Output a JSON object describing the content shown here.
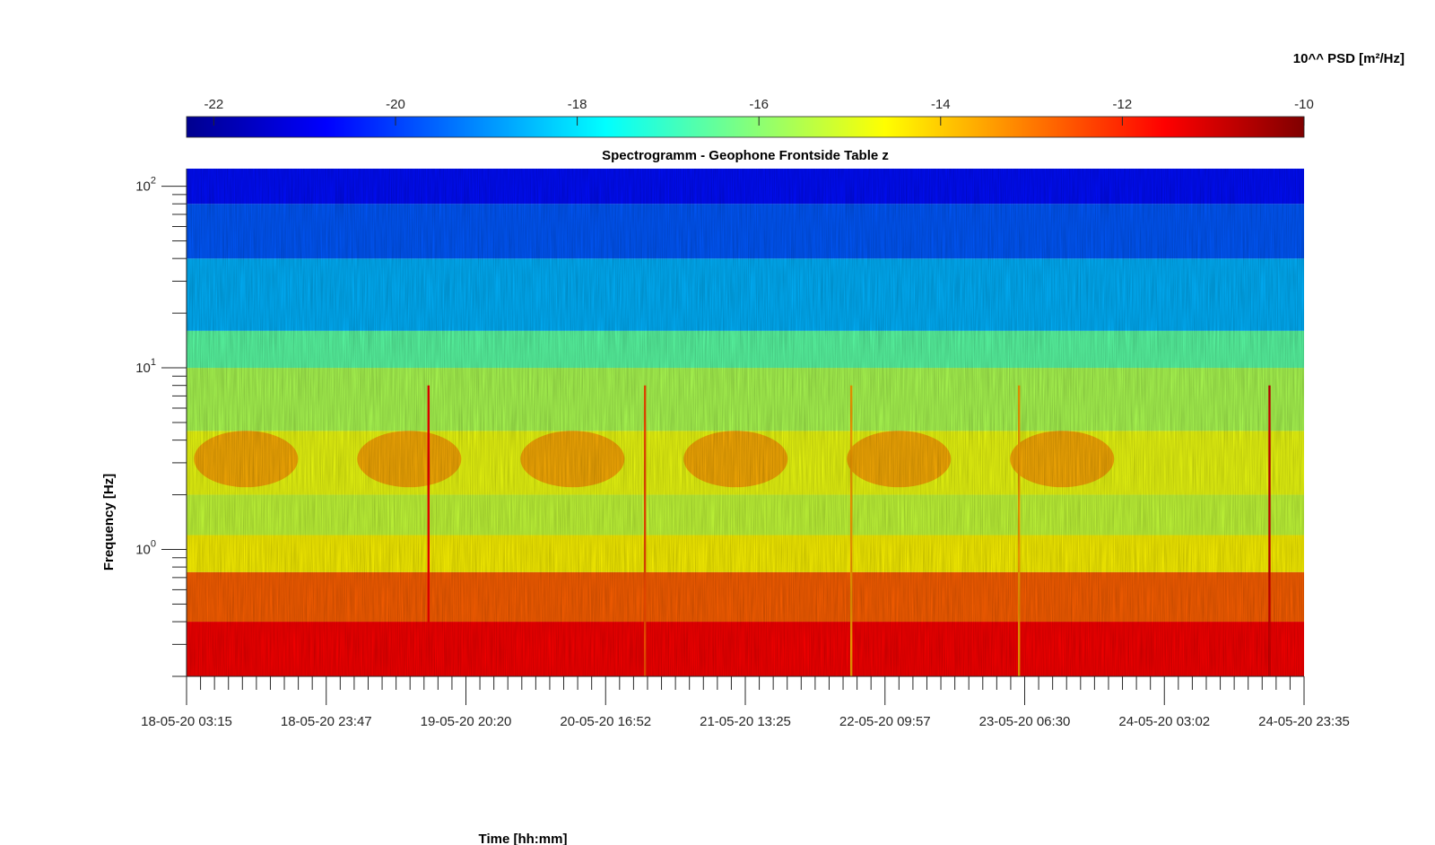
{
  "chart_data": {
    "type": "heatmap",
    "title": "Spectrogramm - Geophone Frontside Table z",
    "xlabel": "Time [hh:mm]",
    "ylabel": "Frequency [Hz]",
    "y_scale": "log",
    "ylim": [
      0.2,
      125
    ],
    "colormap": "jet",
    "colorbar": {
      "label": "10^^ PSD [m²/Hz]",
      "range": [
        -22.3,
        -10
      ],
      "ticks": [
        "-22",
        "-20",
        "-18",
        "-16",
        "-14",
        "-12",
        "-10"
      ],
      "tick_values": [
        -22,
        -20,
        -18,
        -16,
        -14,
        -12,
        -10
      ],
      "placement": "top"
    },
    "x_tick_labels": [
      "18-05-20 03:15",
      "18-05-20 23:47",
      "19-05-20 20:20",
      "20-05-20 16:52",
      "21-05-20 13:25",
      "22-05-20 09:57",
      "23-05-20 06:30",
      "24-05-20 03:02",
      "24-05-20 23:35"
    ],
    "x_range": [
      "18-05-20 03:15",
      "24-05-20 23:35"
    ],
    "y_ticks": [
      {
        "value": 1,
        "base": "10",
        "exp": "0"
      },
      {
        "value": 10,
        "base": "10",
        "exp": "1"
      },
      {
        "value": 100,
        "base": "10",
        "exp": "2"
      }
    ],
    "bands": [
      {
        "f_low": 0.2,
        "f_high": 0.4,
        "log10_psd": -11.5
      },
      {
        "f_low": 0.4,
        "f_high": 0.75,
        "log10_psd": -12.7
      },
      {
        "f_low": 0.75,
        "f_high": 1.2,
        "log10_psd": -14.5
      },
      {
        "f_low": 1.2,
        "f_high": 2,
        "log10_psd": -15.3
      },
      {
        "f_low": 2,
        "f_high": 4.5,
        "log10_psd": -14.8
      },
      {
        "f_low": 4.5,
        "f_high": 10,
        "log10_psd": -15.6
      },
      {
        "f_low": 10,
        "f_high": 16,
        "log10_psd": -16.6
      },
      {
        "f_low": 16,
        "f_high": 40,
        "log10_psd": -18.6
      },
      {
        "f_low": 40,
        "f_high": 80,
        "log10_psd": -19.7
      },
      {
        "f_low": 80,
        "f_high": 125,
        "log10_psd": -20.6
      }
    ],
    "daytime_activity_center_dates": [
      "18-05-20",
      "19-05-20",
      "20-05-20",
      "21-05-20",
      "22-05-20",
      "23-05-20"
    ],
    "daytime_activity_band_hz": [
      2.2,
      4.5
    ],
    "daytime_activity_log10_psd": -13.3,
    "transient_events": [
      {
        "time": "19-05-20 14:50",
        "log10_psd": -11.5
      },
      {
        "time": "20-05-20 22:40",
        "log10_psd": -12.5
      },
      {
        "time": "22-05-20 05:00",
        "log10_psd": -13.5
      },
      {
        "time": "23-05-20 05:40",
        "log10_psd": -13.5
      },
      {
        "time": "24-05-20 18:30",
        "log10_psd": -11.0
      }
    ],
    "grid": false
  }
}
